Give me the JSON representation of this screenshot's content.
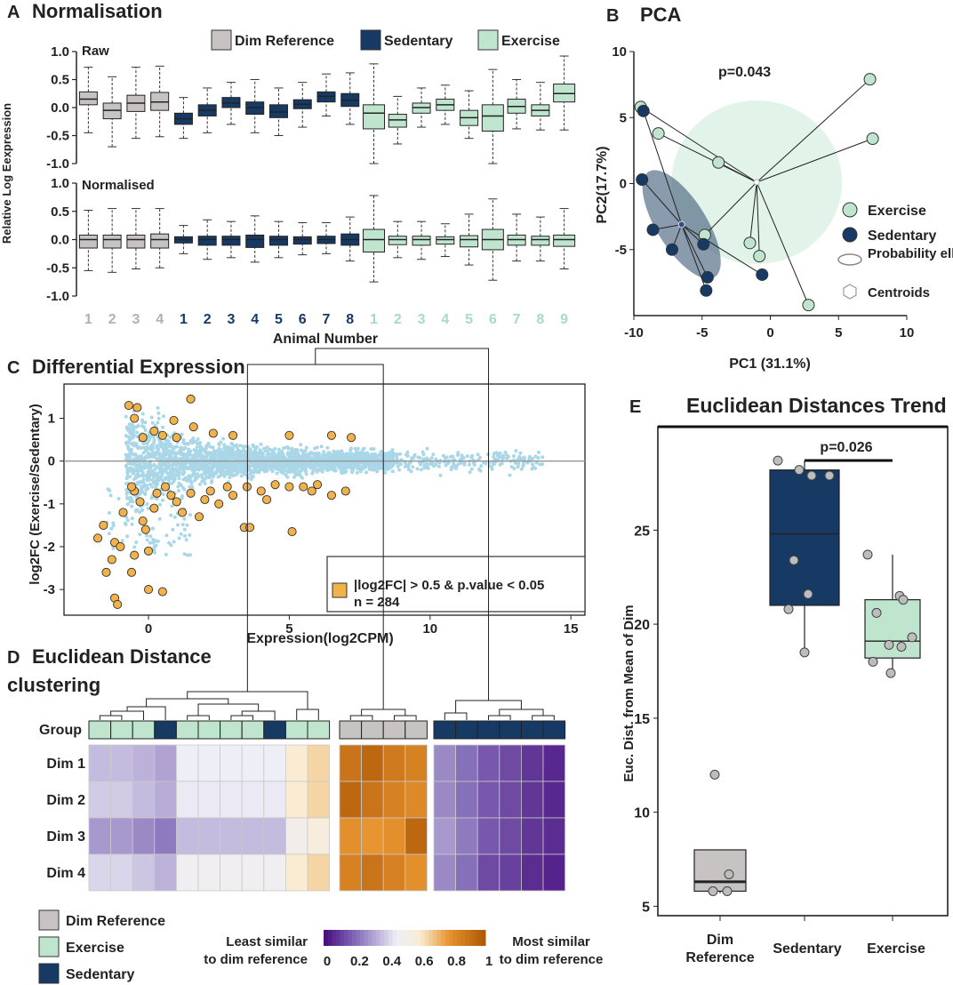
{
  "colors": {
    "dim": "#c8c3c3",
    "sed": "#163a64",
    "exe": "#bfe5cf",
    "deg": "#f2b24a",
    "point": "#a9d7e8"
  },
  "chart_data": [
    {
      "id": "A",
      "panel_letter": "A",
      "type": "box",
      "title": "Normalisation",
      "legend": [
        "Dim Reference",
        "Sedentary",
        "Exercise"
      ],
      "ylabel": "Relative Log Eexpression",
      "xlabel": "Animal Number",
      "yticks": [
        "1.0",
        "0.5",
        "0.0",
        "-0.5",
        "-1.0"
      ],
      "ylim": [
        -1.0,
        1.0
      ],
      "groups": [
        "dim",
        "dim",
        "dim",
        "dim",
        "sed",
        "sed",
        "sed",
        "sed",
        "sed",
        "sed",
        "sed",
        "sed",
        "exe",
        "exe",
        "exe",
        "exe",
        "exe",
        "exe",
        "exe",
        "exe",
        "exe"
      ],
      "x_labels": [
        "1",
        "2",
        "3",
        "4",
        "1",
        "2",
        "3",
        "4",
        "5",
        "6",
        "7",
        "8",
        "1",
        "2",
        "3",
        "4",
        "5",
        "6",
        "7",
        "8",
        "9"
      ],
      "subplots": [
        {
          "name": "Raw",
          "boxes": [
            [
              -0.45,
              0.05,
              0.15,
              0.28,
              0.72
            ],
            [
              -0.7,
              -0.2,
              -0.05,
              0.08,
              0.55
            ],
            [
              -0.55,
              -0.07,
              0.08,
              0.22,
              0.72
            ],
            [
              -0.52,
              -0.05,
              0.1,
              0.27,
              0.74
            ],
            [
              -0.55,
              -0.3,
              -0.2,
              -0.1,
              0.18
            ],
            [
              -0.45,
              -0.15,
              -0.05,
              0.05,
              0.35
            ],
            [
              -0.3,
              0.0,
              0.08,
              0.18,
              0.45
            ],
            [
              -0.45,
              -0.12,
              0.0,
              0.1,
              0.5
            ],
            [
              -0.5,
              -0.18,
              -0.08,
              0.05,
              0.35
            ],
            [
              -0.35,
              -0.02,
              0.06,
              0.14,
              0.45
            ],
            [
              -0.15,
              0.1,
              0.2,
              0.28,
              0.6
            ],
            [
              -0.3,
              0.02,
              0.13,
              0.25,
              0.62
            ],
            [
              -1.0,
              -0.38,
              -0.1,
              0.05,
              0.78
            ],
            [
              -0.65,
              -0.35,
              -0.22,
              -0.12,
              0.2
            ],
            [
              -0.35,
              -0.1,
              0.0,
              0.08,
              0.35
            ],
            [
              -0.3,
              -0.05,
              0.05,
              0.15,
              0.4
            ],
            [
              -0.55,
              -0.32,
              -0.18,
              -0.05,
              0.3
            ],
            [
              -1.0,
              -0.42,
              -0.15,
              0.05,
              0.68
            ],
            [
              -0.38,
              -0.1,
              0.02,
              0.15,
              0.5
            ],
            [
              -0.4,
              -0.15,
              -0.05,
              0.05,
              0.45
            ],
            [
              -0.4,
              0.1,
              0.25,
              0.42,
              0.92
            ]
          ]
        },
        {
          "name": "Normalised",
          "boxes": [
            [
              -0.55,
              -0.15,
              0.0,
              0.08,
              0.52
            ],
            [
              -0.58,
              -0.15,
              0.0,
              0.08,
              0.55
            ],
            [
              -0.52,
              -0.15,
              0.0,
              0.08,
              0.55
            ],
            [
              -0.5,
              -0.15,
              0.0,
              0.1,
              0.55
            ],
            [
              -0.25,
              -0.06,
              0.0,
              0.05,
              0.25
            ],
            [
              -0.35,
              -0.1,
              0.0,
              0.06,
              0.35
            ],
            [
              -0.32,
              -0.1,
              0.0,
              0.06,
              0.32
            ],
            [
              -0.4,
              -0.14,
              0.0,
              0.08,
              0.42
            ],
            [
              -0.32,
              -0.1,
              0.0,
              0.06,
              0.32
            ],
            [
              -0.27,
              -0.08,
              0.0,
              0.05,
              0.3
            ],
            [
              -0.25,
              -0.07,
              0.0,
              0.06,
              0.3
            ],
            [
              -0.38,
              -0.1,
              0.0,
              0.1,
              0.4
            ],
            [
              -0.75,
              -0.22,
              0.0,
              0.18,
              0.78
            ],
            [
              -0.32,
              -0.09,
              0.0,
              0.06,
              0.32
            ],
            [
              -0.35,
              -0.1,
              0.0,
              0.06,
              0.32
            ],
            [
              -0.3,
              -0.08,
              0.0,
              0.05,
              0.28
            ],
            [
              -0.45,
              -0.13,
              0.0,
              0.07,
              0.45
            ],
            [
              -0.72,
              -0.18,
              0.0,
              0.18,
              0.72
            ],
            [
              -0.38,
              -0.1,
              0.0,
              0.08,
              0.45
            ],
            [
              -0.38,
              -0.1,
              0.0,
              0.06,
              0.4
            ],
            [
              -0.52,
              -0.12,
              0.0,
              0.08,
              0.55
            ]
          ]
        }
      ]
    },
    {
      "id": "B",
      "panel_letter": "B",
      "type": "scatter",
      "title": "PCA",
      "xlabel": "PC1 (31.1%)",
      "ylabel": "PC2(17.7%)",
      "annotation": "p=0.043",
      "xticks": [
        "-10",
        "-5",
        "0",
        "5",
        "10"
      ],
      "yticks": [
        "10",
        "5",
        "0",
        "-5"
      ],
      "xlim": [
        -10,
        10
      ],
      "ylim": [
        -10,
        10
      ],
      "legend": [
        "Exercise",
        "Sedentary",
        "Probability ellipse",
        "Centroids"
      ],
      "exercise": [
        [
          -9.5,
          5.8
        ],
        [
          -8.2,
          3.8
        ],
        [
          -3.8,
          1.6
        ],
        [
          -4.8,
          -3.9
        ],
        [
          -1.5,
          -4.5
        ],
        [
          -0.8,
          -5.5
        ],
        [
          2.8,
          -9.2
        ],
        [
          7.3,
          7.9
        ],
        [
          7.5,
          3.4
        ]
      ],
      "sedentary": [
        [
          -9.3,
          5.5
        ],
        [
          -9.4,
          0.3
        ],
        [
          -8.6,
          -3.5
        ],
        [
          -7.2,
          -5.0
        ],
        [
          -4.9,
          -4.6
        ],
        [
          -4.6,
          -7.1
        ],
        [
          -4.7,
          -8.1
        ],
        [
          -0.6,
          -6.9
        ]
      ],
      "exercise_centroid": [
        -1.0,
        0.1
      ],
      "sedentary_centroid": [
        -6.5,
        -3.1
      ]
    },
    {
      "id": "C",
      "panel_letter": "C",
      "type": "scatter",
      "title": "Differential Expression",
      "xlabel": "Expression(log2CPM)",
      "ylabel": "log2FC (Exercise/Sedentary)",
      "xticks": [
        "0",
        "5",
        "10",
        "15"
      ],
      "yticks": [
        "1",
        "0",
        "-1",
        "-2",
        "-3"
      ],
      "xlim": [
        -3,
        15.5
      ],
      "ylim": [
        -3.6,
        1.8
      ],
      "legend_line1": "|log2FC| > 0.5 & p.value < 0.05",
      "legend_line2": "n = 284",
      "sig_points": [
        [
          -1.5,
          -2.6
        ],
        [
          -1.8,
          -1.8
        ],
        [
          -1.2,
          -1.9
        ],
        [
          -1.0,
          -2.0
        ],
        [
          -1.3,
          -2.3
        ],
        [
          -1.2,
          -3.2
        ],
        [
          -1.1,
          -3.35
        ],
        [
          -0.5,
          -2.2
        ],
        [
          0.0,
          -3.0
        ],
        [
          0.5,
          -3.05
        ],
        [
          -0.6,
          -2.6
        ],
        [
          -0.2,
          -1.4
        ],
        [
          0.0,
          -2.1
        ],
        [
          -0.9,
          -1.2
        ],
        [
          -0.3,
          -0.95
        ],
        [
          0.2,
          -1.1
        ],
        [
          0.8,
          -0.8
        ],
        [
          -0.5,
          -0.7
        ],
        [
          1.2,
          -1.2
        ],
        [
          1.5,
          -0.75
        ],
        [
          2.0,
          -0.9
        ],
        [
          2.5,
          -1.0
        ],
        [
          3.0,
          -0.8
        ],
        [
          3.5,
          -0.6
        ],
        [
          4.0,
          -0.7
        ],
        [
          5.0,
          -0.6
        ],
        [
          5.5,
          -0.6
        ],
        [
          6.0,
          -0.55
        ],
        [
          6.5,
          -0.8
        ],
        [
          7.0,
          -0.7
        ],
        [
          3.4,
          -1.55
        ],
        [
          3.6,
          -1.55
        ],
        [
          5.1,
          -1.65
        ],
        [
          -0.7,
          1.3
        ],
        [
          -0.4,
          1.25
        ],
        [
          -0.5,
          1.0
        ],
        [
          1.5,
          1.45
        ],
        [
          0.2,
          0.7
        ],
        [
          0.5,
          0.6
        ],
        [
          1.0,
          0.55
        ],
        [
          1.6,
          0.8
        ],
        [
          2.3,
          0.65
        ],
        [
          3.0,
          0.6
        ],
        [
          5.0,
          0.6
        ],
        [
          6.5,
          0.6
        ],
        [
          7.2,
          0.55
        ],
        [
          -0.6,
          -0.6
        ],
        [
          0.3,
          -0.75
        ],
        [
          1.0,
          -0.95
        ],
        [
          2.2,
          -0.7
        ],
        [
          4.5,
          -0.55
        ],
        [
          -0.1,
          -1.6
        ],
        [
          -1.6,
          -1.5
        ],
        [
          1.8,
          -1.3
        ],
        [
          0.6,
          -0.6
        ],
        [
          2.8,
          -0.6
        ],
        [
          4.2,
          -0.9
        ],
        [
          5.8,
          -0.7
        ],
        [
          0.9,
          0.95
        ],
        [
          -0.2,
          0.55
        ]
      ]
    },
    {
      "id": "D",
      "panel_letter": "D",
      "type": "heatmap",
      "title_line1": "Euclidean Distance",
      "title_line2": "clustering",
      "group_label": "Group",
      "rows": [
        "Dim 1",
        "Dim 2",
        "Dim 3",
        "Dim 4"
      ],
      "column_groups": [
        "exe",
        "exe",
        "exe",
        "sed",
        "exe",
        "exe",
        "exe",
        "exe",
        "sed",
        "exe",
        "exe",
        "dim",
        "dim",
        "dim",
        "dim",
        "sed",
        "sed",
        "sed",
        "sed",
        "sed",
        "sed"
      ],
      "values": [
        [
          0.35,
          0.35,
          0.33,
          0.3,
          0.45,
          0.45,
          0.45,
          0.45,
          0.45,
          0.6,
          0.65,
          0.9,
          0.95,
          0.88,
          0.85,
          0.25,
          0.2,
          0.15,
          0.12,
          0.08,
          0.05
        ],
        [
          0.38,
          0.38,
          0.35,
          0.32,
          0.44,
          0.44,
          0.44,
          0.44,
          0.44,
          0.6,
          0.65,
          0.95,
          0.9,
          0.85,
          0.82,
          0.25,
          0.2,
          0.15,
          0.12,
          0.08,
          0.05
        ],
        [
          0.28,
          0.28,
          0.25,
          0.22,
          0.35,
          0.35,
          0.35,
          0.35,
          0.35,
          0.5,
          0.55,
          0.8,
          0.78,
          0.8,
          0.95,
          0.28,
          0.22,
          0.15,
          0.12,
          0.08,
          0.06
        ],
        [
          0.4,
          0.4,
          0.37,
          0.33,
          0.47,
          0.47,
          0.47,
          0.47,
          0.47,
          0.6,
          0.65,
          0.85,
          0.9,
          0.85,
          0.8,
          0.25,
          0.2,
          0.12,
          0.1,
          0.06,
          0.04
        ]
      ],
      "legend": [
        "Dim Reference",
        "Exercise",
        "Sedentary"
      ],
      "colorbar_left_line1": "Least similar",
      "colorbar_left_line2": "to dim reference",
      "colorbar_right_line1": "Most similar",
      "colorbar_right_line2": "to dim reference",
      "colorbar_ticks": [
        "0",
        "0.2",
        "0.4",
        "0.6",
        "0.8",
        "1"
      ]
    },
    {
      "id": "E",
      "panel_letter": "E",
      "type": "box",
      "title": "Euclidean Distances Trend",
      "ylabel": "Euc. Dist. from Mean of Dim",
      "yticks": [
        "25",
        "20",
        "15",
        "10",
        "5"
      ],
      "ylim": [
        4.5,
        30.5
      ],
      "categories": [
        "Dim Reference",
        "Sedentary",
        "Exercise"
      ],
      "annotation": "p=0.026",
      "boxes": [
        [
          5.7,
          5.8,
          6.3,
          8.0,
          8.0
        ],
        [
          18.5,
          21.0,
          24.8,
          28.2,
          28.7
        ],
        [
          17.4,
          18.2,
          19.1,
          21.3,
          23.7
        ]
      ],
      "points": [
        [
          5.8,
          5.8,
          6.7,
          12.0
        ],
        [
          28.7,
          28.2,
          27.9,
          27.9,
          23.4,
          21.6,
          20.8,
          18.5
        ],
        [
          23.7,
          21.5,
          21.3,
          20.6,
          19.3,
          18.9,
          18.8,
          18.0,
          17.4
        ]
      ]
    }
  ]
}
